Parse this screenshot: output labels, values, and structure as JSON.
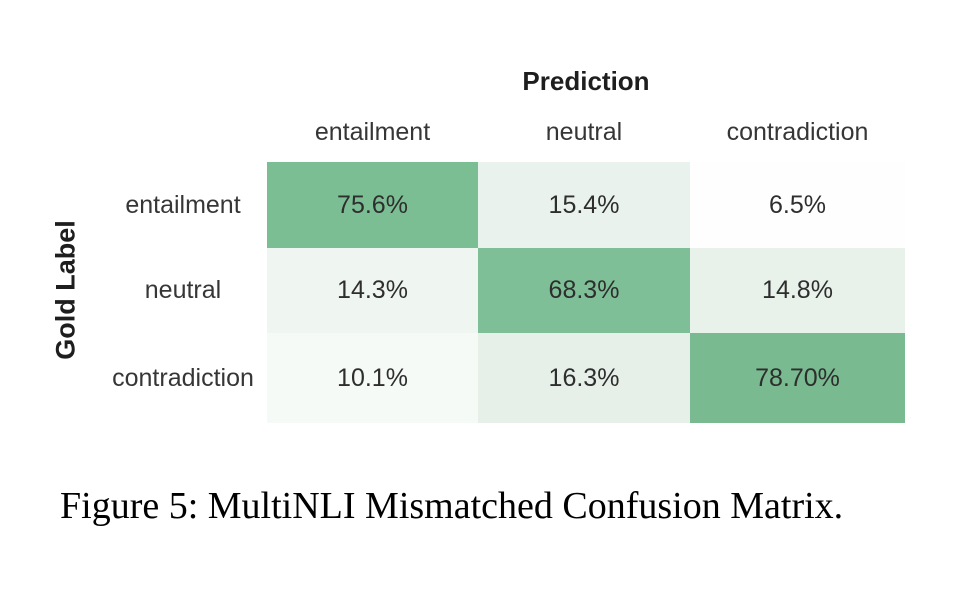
{
  "chart_data": {
    "type": "heatmap",
    "title": "",
    "xlabel": "Prediction",
    "ylabel": "Gold Label",
    "categories_x": [
      "entailment",
      "neutral",
      "contradiction"
    ],
    "categories_y": [
      "entailment",
      "neutral",
      "contradiction"
    ],
    "values": [
      [
        75.6,
        15.4,
        6.5
      ],
      [
        14.3,
        68.3,
        14.8
      ],
      [
        10.1,
        16.3,
        78.7
      ]
    ],
    "cell_labels": [
      [
        "75.6%",
        "15.4%",
        "6.5%"
      ],
      [
        "14.3%",
        "68.3%",
        "14.8%"
      ],
      [
        "10.1%",
        "16.3%",
        "78.70%"
      ]
    ],
    "cell_colors": [
      [
        "#7cbe94",
        "#e9f2ec",
        "#fdfefd"
      ],
      [
        "#eff5f1",
        "#7fbf98",
        "#e8f2eb"
      ],
      [
        "#f6faf7",
        "#e6f0e9",
        "#79ba90"
      ]
    ],
    "colormap": {
      "low": "#ffffff",
      "high": "#6cb488"
    },
    "legend": "none",
    "grid": "off"
  },
  "caption": "Figure 5: MultiNLI Mismatched Confusion Matrix."
}
